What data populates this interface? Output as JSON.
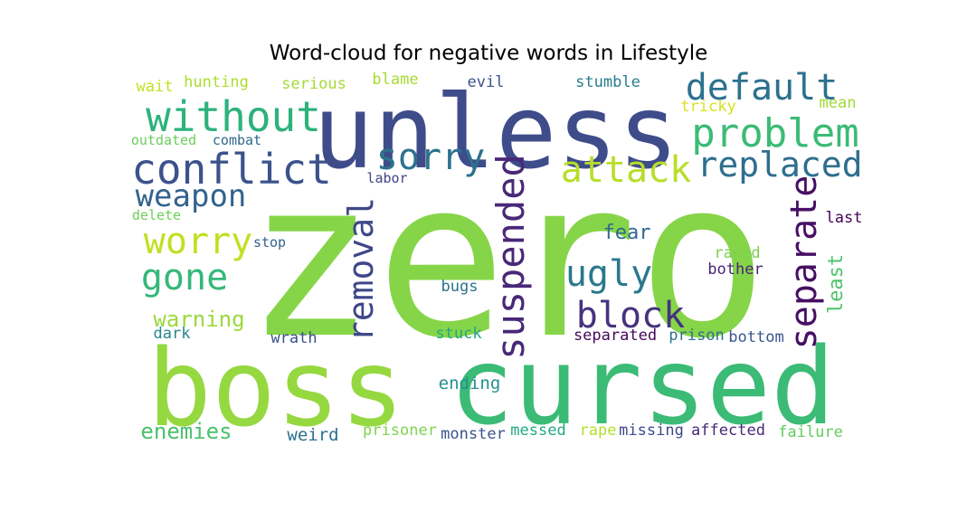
{
  "chart_data": {
    "type": "wordcloud",
    "title": "Word-cloud for negative words in Lifestyle",
    "words": [
      {
        "text": "zero",
        "color": "#86d549"
      },
      {
        "text": "boss",
        "color": "#95d840"
      },
      {
        "text": "cursed",
        "color": "#3bbb75"
      },
      {
        "text": "unless",
        "color": "#3e4c8a"
      },
      {
        "text": "without",
        "color": "#2db27d"
      },
      {
        "text": "default",
        "color": "#2c718e"
      },
      {
        "text": "problem",
        "color": "#3bbb75"
      },
      {
        "text": "conflict",
        "color": "#3b528b"
      },
      {
        "text": "sorry",
        "color": "#2c728e"
      },
      {
        "text": "attack",
        "color": "#b8de29"
      },
      {
        "text": "replaced",
        "color": "#2e6e8e"
      },
      {
        "text": "weapon",
        "color": "#33638d"
      },
      {
        "text": "worry",
        "color": "#c2df23"
      },
      {
        "text": "gone",
        "color": "#35b779"
      },
      {
        "text": "removal",
        "color": "#3f4788"
      },
      {
        "text": "suspended",
        "color": "#482878"
      },
      {
        "text": "ugly",
        "color": "#2a788e"
      },
      {
        "text": "block",
        "color": "#46327e"
      },
      {
        "text": "separate",
        "color": "#471063"
      },
      {
        "text": "warning",
        "color": "#9bd93c"
      },
      {
        "text": "enemies",
        "color": "#4ac16d"
      },
      {
        "text": "fear",
        "color": "#31688e"
      },
      {
        "text": "least",
        "color": "#4ec36b"
      },
      {
        "text": "hunting",
        "color": "#addc30"
      },
      {
        "text": "wait",
        "color": "#c5e021"
      },
      {
        "text": "serious",
        "color": "#a5db36"
      },
      {
        "text": "blame",
        "color": "#a8db34"
      },
      {
        "text": "evil",
        "color": "#3b528b"
      },
      {
        "text": "stumble",
        "color": "#287c8e"
      },
      {
        "text": "mean",
        "color": "#a0da39"
      },
      {
        "text": "tricky",
        "color": "#d8e219"
      },
      {
        "text": "outdated",
        "color": "#6ccd5a"
      },
      {
        "text": "combat",
        "color": "#31688e"
      },
      {
        "text": "labor",
        "color": "#414487"
      },
      {
        "text": "delete",
        "color": "#6ece58"
      },
      {
        "text": "last",
        "color": "#440154"
      },
      {
        "text": "stop",
        "color": "#33638d"
      },
      {
        "text": "raped",
        "color": "#7ad151"
      },
      {
        "text": "bother",
        "color": "#482475"
      },
      {
        "text": "bugs",
        "color": "#2c718e"
      },
      {
        "text": "dark",
        "color": "#24868e"
      },
      {
        "text": "wrath",
        "color": "#3b528b"
      },
      {
        "text": "stuck",
        "color": "#21a685"
      },
      {
        "text": "separated",
        "color": "#46085c"
      },
      {
        "text": "prison",
        "color": "#2e6f8e"
      },
      {
        "text": "bottom",
        "color": "#39558c"
      },
      {
        "text": "ending",
        "color": "#21918c"
      },
      {
        "text": "weird",
        "color": "#2d708e"
      },
      {
        "text": "prisoner",
        "color": "#7fd34e"
      },
      {
        "text": "monster",
        "color": "#3b528b"
      },
      {
        "text": "messed",
        "color": "#22a884"
      },
      {
        "text": "rape",
        "color": "#b5de2b"
      },
      {
        "text": "missing",
        "color": "#3e4989"
      },
      {
        "text": "affected",
        "color": "#482878"
      },
      {
        "text": "failure",
        "color": "#63cb5f"
      }
    ]
  }
}
